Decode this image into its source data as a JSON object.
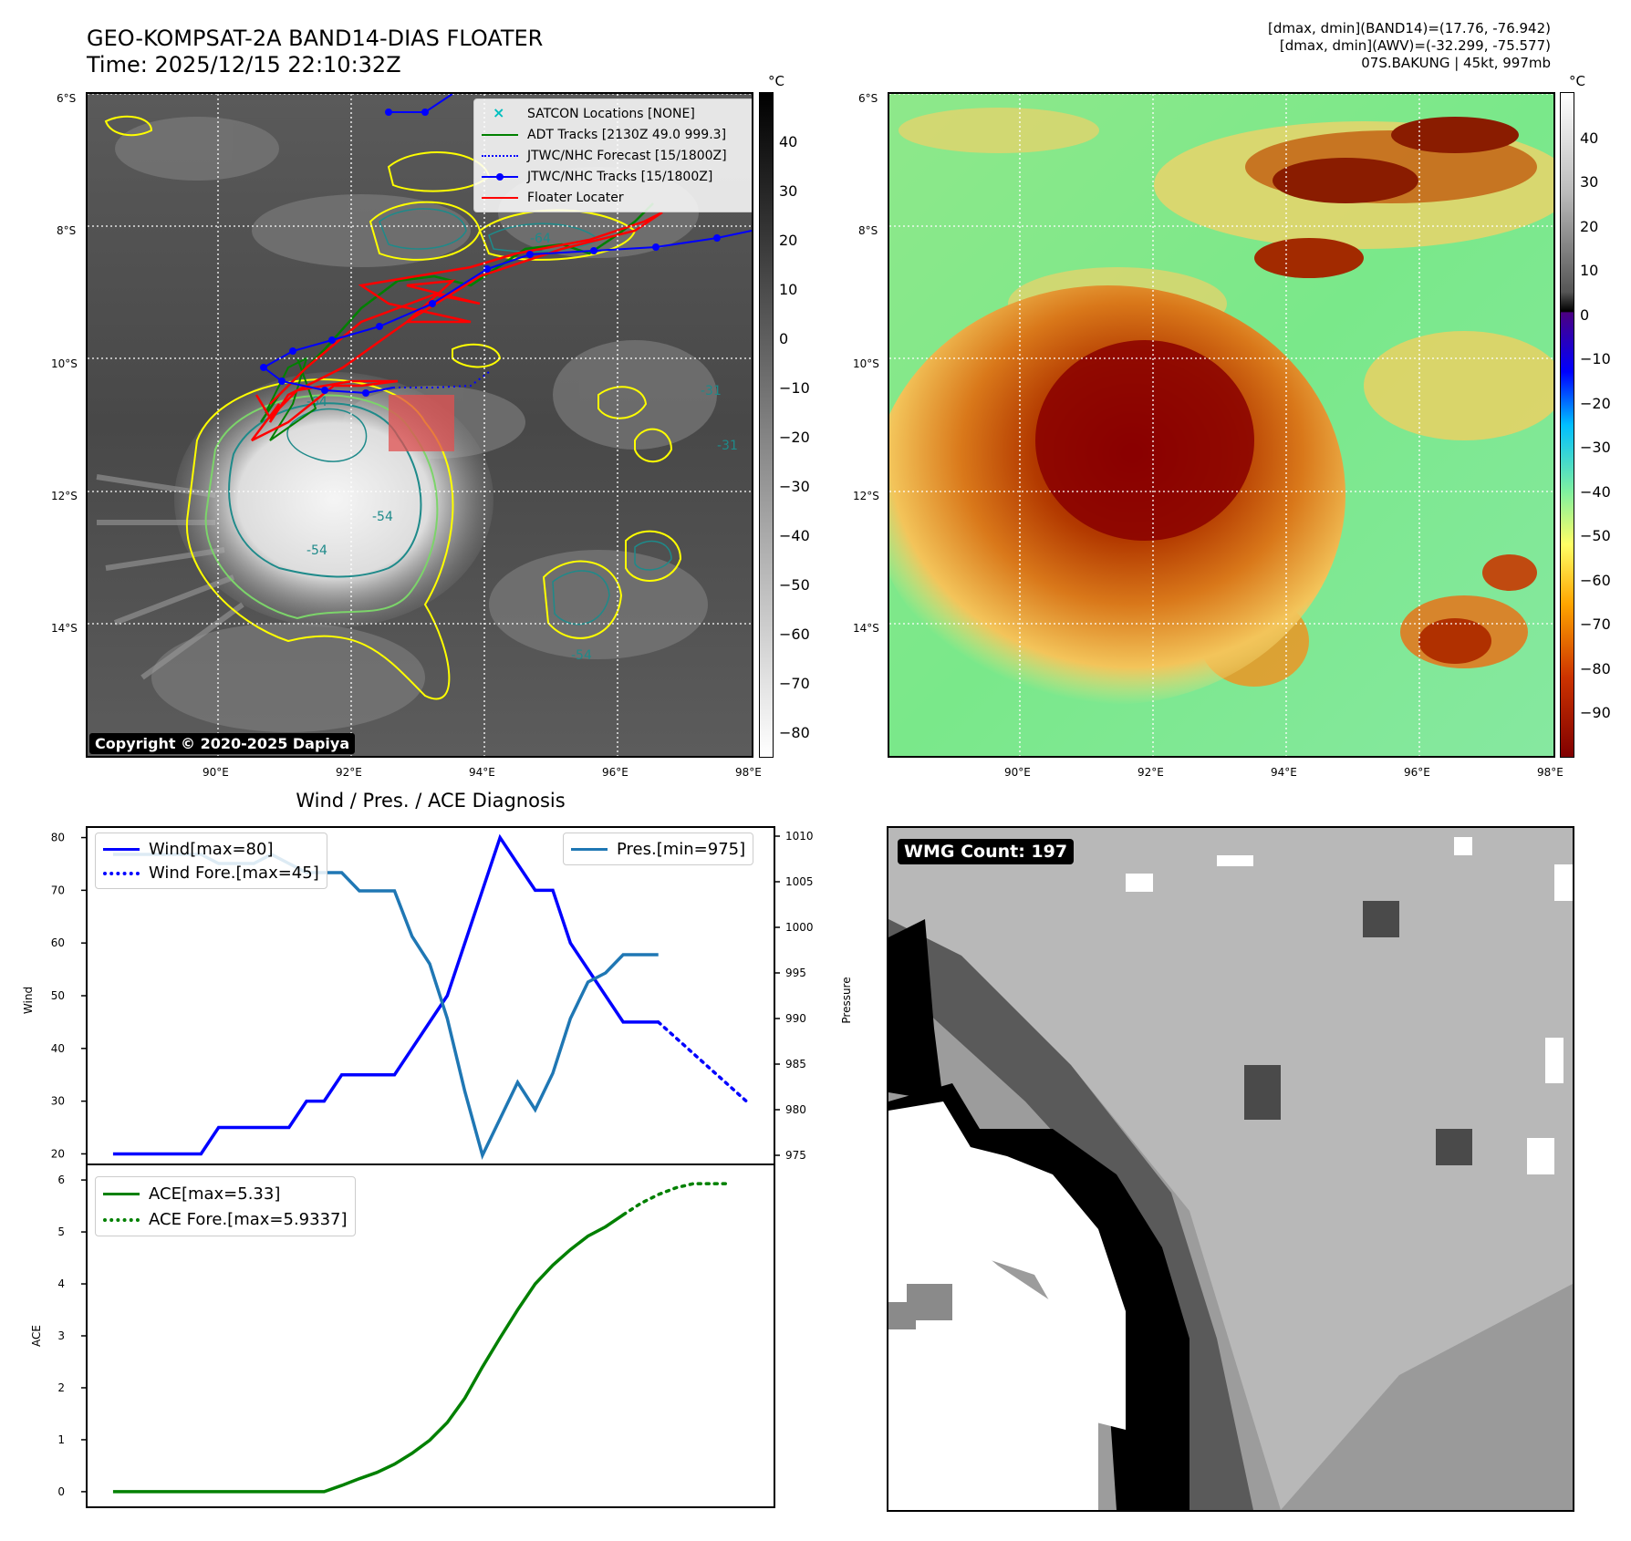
{
  "header": {
    "title_line1": "GEO-KOMPSAT-2A BAND14-DIAS FLOATER",
    "title_line2": "Time: 2025/12/15 22:10:32Z",
    "info_line1": "[dmax, dmin](BAND14)=(17.76, -76.942)",
    "info_line2": "[dmax, dmin](AWV)=(-32.299, -75.577)",
    "info_line3": "07S.BAKUNG | 45kt, 997mb"
  },
  "map": {
    "lat_labels": [
      "6°S",
      "8°S",
      "10°S",
      "12°S",
      "14°S"
    ],
    "lon_labels": [
      "90°E",
      "92°E",
      "94°E",
      "96°E",
      "98°E"
    ],
    "copyright": "Copyright © 2020-2025 Dapiya",
    "contour_labels": [
      "-64",
      "-54",
      "-31",
      "-64",
      "-31",
      "-54",
      "-54"
    ],
    "legend": [
      {
        "label": "SATCON Locations [NONE]",
        "color": "#00bfbf",
        "style": "x"
      },
      {
        "label": "ADT Tracks [2130Z 49.0 999.3]",
        "color": "#008000",
        "style": "solid"
      },
      {
        "label": "JTWC/NHC Forecast [15/1800Z]",
        "color": "#0000ff",
        "style": "dotted"
      },
      {
        "label": "JTWC/NHC Tracks [15/1800Z]",
        "color": "#0000ff",
        "style": "marker"
      },
      {
        "label": "Floater Locater",
        "color": "#ff0000",
        "style": "solid"
      }
    ]
  },
  "colorbar_left": {
    "unit": "°C",
    "ticks": [
      "40",
      "30",
      "20",
      "10",
      "0",
      "−10",
      "−20",
      "−30",
      "−40",
      "−50",
      "−60",
      "−70",
      "−80"
    ]
  },
  "colorbar_right": {
    "unit": "°C",
    "ticks": [
      "40",
      "30",
      "20",
      "10",
      "0",
      "−10",
      "−20",
      "−30",
      "−40",
      "−50",
      "−60",
      "−70",
      "−80",
      "−90"
    ]
  },
  "diagnosis": {
    "title": "Wind / Pres. / ACE Diagnosis",
    "wind_ylabel": "Wind",
    "pres_ylabel": "Pressure",
    "ace_ylabel": "ACE",
    "wmg_label": "WMG Count: 197"
  },
  "chart_data": [
    {
      "type": "line",
      "x": [
        0,
        1,
        2,
        3,
        4,
        5,
        6,
        7,
        8,
        9,
        10,
        11,
        12,
        13,
        14,
        15,
        16,
        17,
        18,
        19,
        20,
        21,
        22,
        23,
        24,
        25,
        26,
        27,
        28,
        29
      ],
      "ylabel": "Wind",
      "ylim": [
        18,
        82
      ],
      "yticks": [
        20,
        30,
        40,
        50,
        60,
        70,
        80
      ],
      "series": [
        {
          "name": "Wind[max=80]",
          "color": "#0000ff",
          "style": "solid",
          "x": [
            0,
            1,
            2,
            3,
            4,
            5,
            6,
            7,
            8,
            9,
            10,
            11,
            12,
            13,
            14,
            15,
            16,
            17,
            18,
            19,
            20,
            21,
            22,
            23,
            24,
            25,
            26,
            27,
            28,
            29,
            30,
            31
          ],
          "values": [
            20,
            20,
            20,
            20,
            20,
            20,
            25,
            25,
            25,
            25,
            25,
            30,
            30,
            35,
            35,
            35,
            35,
            40,
            45,
            50,
            60,
            70,
            80,
            75,
            70,
            70,
            60,
            55,
            50,
            45,
            45,
            45
          ]
        },
        {
          "name": "Wind Fore.[max=45]",
          "color": "#0000ff",
          "style": "dotted",
          "x": [
            31,
            32,
            33,
            34,
            35,
            36
          ],
          "values": [
            45,
            42,
            39,
            36,
            33,
            30
          ]
        }
      ],
      "legend_position": "top-left"
    },
    {
      "type": "line",
      "ylabel": "Pressure",
      "ylim": [
        974,
        1011
      ],
      "yticks": [
        975,
        980,
        985,
        990,
        995,
        1000,
        1005,
        1010
      ],
      "series": [
        {
          "name": "Pres.[min=975]",
          "color": "#1f77b4",
          "style": "solid",
          "x": [
            0,
            1,
            2,
            3,
            4,
            5,
            6,
            7,
            8,
            9,
            10,
            11,
            12,
            13,
            14,
            15,
            16,
            17,
            18,
            19,
            20,
            21,
            22,
            23,
            24,
            25,
            26,
            27,
            28,
            29,
            30,
            31
          ],
          "values": [
            1008,
            1008,
            1008,
            1008,
            1008,
            1008,
            1007,
            1007,
            1007,
            1008,
            1007,
            1006,
            1006,
            1006,
            1004,
            1004,
            1004,
            999,
            996,
            990,
            982,
            975,
            979,
            983,
            980,
            984,
            990,
            994,
            995,
            997,
            997,
            997
          ]
        }
      ],
      "legend_position": "top-right"
    },
    {
      "type": "line",
      "ylabel": "ACE",
      "ylim": [
        -0.3,
        6.3
      ],
      "yticks": [
        0,
        1,
        2,
        3,
        4,
        5,
        6
      ],
      "series": [
        {
          "name": "ACE[max=5.33]",
          "color": "#008000",
          "style": "solid",
          "x": [
            0,
            1,
            2,
            3,
            4,
            5,
            6,
            7,
            8,
            9,
            10,
            11,
            12,
            13,
            14,
            15,
            16,
            17,
            18,
            19,
            20,
            21,
            22,
            23,
            24,
            25,
            26,
            27,
            28,
            29
          ],
          "values": [
            0,
            0,
            0,
            0,
            0,
            0,
            0,
            0,
            0,
            0,
            0,
            0,
            0,
            0.12,
            0.25,
            0.37,
            0.53,
            0.74,
            0.99,
            1.33,
            1.8,
            2.4,
            2.96,
            3.5,
            4.0,
            4.36,
            4.66,
            4.92,
            5.1,
            5.33
          ]
        },
        {
          "name": "ACE Fore.[max=5.9337]",
          "color": "#008000",
          "style": "dotted",
          "x": [
            29,
            30,
            31,
            32,
            33,
            34,
            35
          ],
          "values": [
            5.33,
            5.55,
            5.72,
            5.85,
            5.93,
            5.93,
            5.93
          ]
        }
      ],
      "legend_position": "top-left"
    }
  ]
}
